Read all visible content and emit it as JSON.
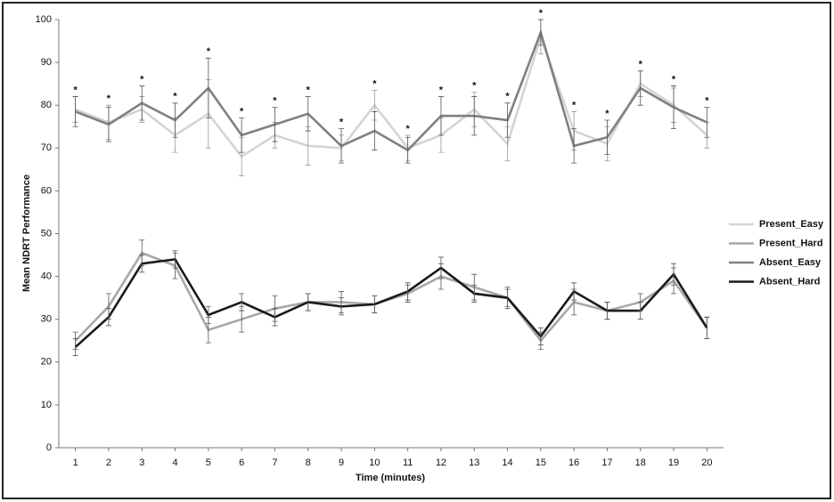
{
  "chart_data": {
    "type": "line",
    "x_label": "Time (minutes)",
    "y_label": "Mean NDRT Performance",
    "x": [
      1,
      2,
      3,
      4,
      5,
      6,
      7,
      8,
      9,
      10,
      11,
      12,
      13,
      14,
      15,
      16,
      17,
      18,
      19,
      20
    ],
    "xlim": [
      0.5,
      20.5
    ],
    "ylim": [
      0,
      100
    ],
    "yticks": [
      0,
      10,
      20,
      30,
      40,
      50,
      60,
      70,
      80,
      90,
      100
    ],
    "grid": false,
    "legend": "right",
    "series": [
      {
        "name": "Present_Easy",
        "color": "#d4d4d4",
        "values": [
          79,
          76,
          79,
          73,
          78,
          68,
          73,
          70.5,
          70,
          80,
          70,
          73,
          79,
          71,
          96,
          74,
          71,
          85,
          80,
          73
        ],
        "errors": [
          3,
          4,
          3,
          4,
          8,
          4.5,
          3,
          4.5,
          3,
          3.5,
          3,
          4,
          4,
          4,
          4,
          4.5,
          4,
          3,
          4,
          3
        ]
      },
      {
        "name": "Present_Hard",
        "color": "#a8a8a8",
        "values": [
          25,
          33,
          45.5,
          42.5,
          27.5,
          30,
          32.5,
          34,
          34,
          33.5,
          36,
          40,
          37.5,
          35,
          25,
          34,
          32,
          34,
          39,
          28
        ],
        "errors": [
          2,
          3,
          3,
          3,
          3,
          3,
          3,
          2,
          2.5,
          2,
          2,
          3,
          3,
          2.5,
          2,
          3,
          2,
          2,
          3,
          2.5
        ]
      },
      {
        "name": "Absent_Easy",
        "color": "#808080",
        "values": [
          78.5,
          75.5,
          80.5,
          76.5,
          84,
          73,
          75.5,
          78,
          70.5,
          74,
          69.5,
          77.5,
          77.5,
          76.5,
          97,
          70.5,
          72.5,
          84,
          79.5,
          76
        ],
        "errors": [
          3.5,
          4,
          4,
          4,
          7,
          4,
          4,
          4,
          4,
          4.5,
          3,
          4.5,
          4.5,
          4,
          3,
          4,
          4,
          4,
          5,
          3.5
        ]
      },
      {
        "name": "Absent_Hard",
        "color": "#1a1a1a",
        "values": [
          23.5,
          30.5,
          43,
          44,
          31,
          34,
          30.5,
          34,
          33,
          33.5,
          36.5,
          42,
          36,
          35,
          26,
          36.5,
          32,
          32,
          40.5,
          28
        ],
        "errors": [
          2,
          2,
          2,
          2,
          2,
          2,
          2,
          2,
          2,
          2,
          2,
          2.5,
          2,
          2,
          2,
          2,
          2,
          2,
          2.5,
          2.5
        ]
      }
    ],
    "annotations": [
      "*",
      "*",
      "*",
      "*",
      "*",
      "*",
      "*",
      "*",
      "*",
      "*",
      "*",
      "*",
      "*",
      "*",
      "*",
      "*",
      "*",
      "*",
      "*",
      "*"
    ]
  }
}
